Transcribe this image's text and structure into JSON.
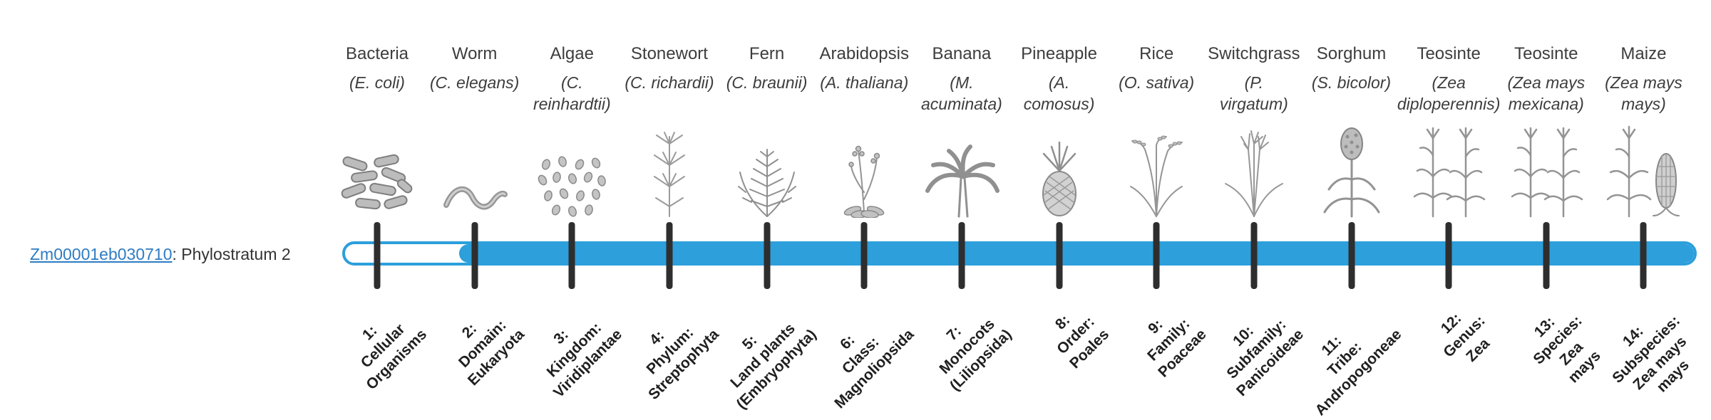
{
  "gene": {
    "id": "Zm00001eb030710",
    "label_suffix": ": Phylostratum 2",
    "phylostratum": 2
  },
  "theme": {
    "accent_blue": "#2d9fdb",
    "tick_color": "#2e2e2e",
    "link_color": "#2e7cc3",
    "text_color": "#3d3d3d"
  },
  "phylostrata": [
    {
      "index": 1,
      "common_name": "Bacteria",
      "scientific_name": "(E. coli)",
      "icon": "bacteria-icon",
      "stratum_label": "1:\nCellular\nOrganisms"
    },
    {
      "index": 2,
      "common_name": "Worm",
      "scientific_name": "(C. elegans)",
      "icon": "worm-icon",
      "stratum_label": "2:\nDomain:\nEukaryota"
    },
    {
      "index": 3,
      "common_name": "Algae",
      "scientific_name": "(C.\nreinhardtii)",
      "icon": "algae-icon",
      "stratum_label": "3:\nKingdom:\nViridiplantae"
    },
    {
      "index": 4,
      "common_name": "Stonewort",
      "scientific_name": "(C. richardii)",
      "icon": "stonewort-icon",
      "stratum_label": "4:\nPhylum:\nStreptophyta"
    },
    {
      "index": 5,
      "common_name": "Fern",
      "scientific_name": "(C. braunii)",
      "icon": "fern-icon",
      "stratum_label": "5:\nLand plants\n(Embryophyta)"
    },
    {
      "index": 6,
      "common_name": "Arabidopsis",
      "scientific_name": "(A. thaliana)",
      "icon": "arabidopsis-icon",
      "stratum_label": "6:\nClass:\nMagnoliopsida"
    },
    {
      "index": 7,
      "common_name": "Banana",
      "scientific_name": "(M.\nacuminata)",
      "icon": "banana-icon",
      "stratum_label": "7:\nMonocots\n(Liliopsida)"
    },
    {
      "index": 8,
      "common_name": "Pineapple",
      "scientific_name": "(A.\ncomosus)",
      "icon": "pineapple-icon",
      "stratum_label": "8:\nOrder:\nPoales"
    },
    {
      "index": 9,
      "common_name": "Rice",
      "scientific_name": "(O. sativa)",
      "icon": "rice-icon",
      "stratum_label": "9:\nFamily:\nPoaceae"
    },
    {
      "index": 10,
      "common_name": "Switchgrass",
      "scientific_name": "(P.\nvirgatum)",
      "icon": "switchgrass-icon",
      "stratum_label": "10:\nSubfamily:\nPanicoideae"
    },
    {
      "index": 11,
      "common_name": "Sorghum",
      "scientific_name": "(S. bicolor)",
      "icon": "sorghum-icon",
      "stratum_label": "11:\nTribe:\nAndropogoneae"
    },
    {
      "index": 12,
      "common_name": "Teosinte",
      "scientific_name": "(Zea\ndiploperennis)",
      "icon": "teosinte-icon",
      "stratum_label": "12:\nGenus:\nZea"
    },
    {
      "index": 13,
      "common_name": "Teosinte",
      "scientific_name": "(Zea mays\nmexicana)",
      "icon": "teosinte-icon",
      "stratum_label": "13:\nSpecies:\nZea\nmays"
    },
    {
      "index": 14,
      "common_name": "Maize",
      "scientific_name": "(Zea mays\nmays)",
      "icon": "maize-icon",
      "stratum_label": "14:\nSubspecies:\nZea mays\nmays"
    }
  ]
}
